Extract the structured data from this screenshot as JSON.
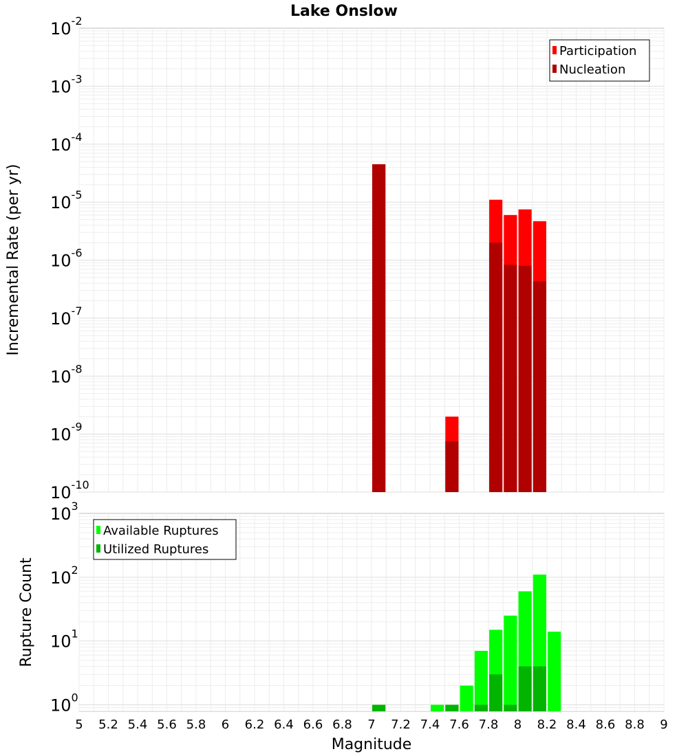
{
  "chart_data": [
    {
      "type": "bar",
      "title": "Lake Onslow",
      "xlabel": "",
      "ylabel": "Incremental Rate (per yr)",
      "y_scale": "log",
      "xlim": [
        5,
        9
      ],
      "ylim": [
        1e-10,
        0.01
      ],
      "y_tick_exponents": [
        "-10",
        "-9",
        "-8",
        "-7",
        "-6",
        "-5",
        "-4",
        "-3",
        "-2"
      ],
      "legend_position": "top-right",
      "bar_width": 0.09,
      "series": [
        {
          "name": "Participation",
          "color": "#ff0000",
          "x": [
            7.05,
            7.55,
            7.85,
            7.95,
            8.05,
            8.15
          ],
          "values": [
            4.5e-05,
            2e-09,
            1.1e-05,
            6e-06,
            7.5e-06,
            4.7e-06
          ]
        },
        {
          "name": "Nucleation",
          "color": "#b00000",
          "x": [
            7.05,
            7.55,
            7.85,
            7.95,
            8.05,
            8.15
          ],
          "values": [
            4.5e-05,
            7.5e-10,
            2e-06,
            8.3e-07,
            8e-07,
            4.3e-07
          ]
        }
      ]
    },
    {
      "type": "bar",
      "title": "",
      "xlabel": "Magnitude",
      "ylabel": "Rupture Count",
      "y_scale": "log",
      "xlim": [
        5,
        9
      ],
      "ylim": [
        0.79,
        1000
      ],
      "y_tick_exponents": [
        "0",
        "1",
        "2",
        "3"
      ],
      "x_ticks": [
        "5",
        "5.2",
        "5.4",
        "5.6",
        "5.8",
        "6",
        "6.2",
        "6.4",
        "6.6",
        "6.8",
        "7",
        "7.2",
        "7.4",
        "7.6",
        "7.8",
        "8",
        "8.2",
        "8.4",
        "8.6",
        "8.8",
        "9"
      ],
      "legend_position": "top-left",
      "bar_width": 0.09,
      "series": [
        {
          "name": "Available Ruptures",
          "color": "#00ff00",
          "x": [
            7.05,
            7.45,
            7.55,
            7.65,
            7.75,
            7.85,
            7.95,
            8.05,
            8.15,
            8.25
          ],
          "values": [
            1,
            1,
            1,
            2,
            7,
            15,
            25,
            60,
            110,
            14
          ]
        },
        {
          "name": "Utilized Ruptures",
          "color": "#00b400",
          "x": [
            7.05,
            7.55,
            7.75,
            7.85,
            7.95,
            8.05,
            8.15
          ],
          "values": [
            1,
            1,
            1,
            3,
            1,
            4,
            4
          ]
        }
      ]
    }
  ]
}
